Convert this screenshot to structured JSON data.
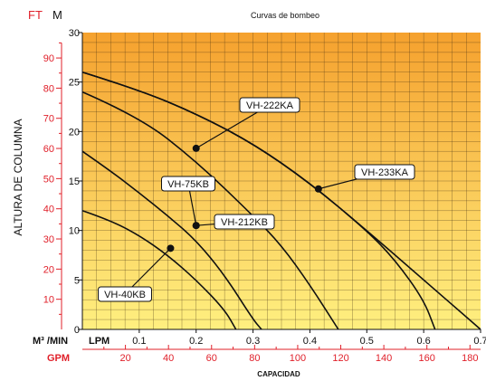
{
  "chart_data": {
    "type": "line",
    "title": "Curvas de bombeo",
    "units_left": {
      "ft": "FT",
      "m": "M"
    },
    "ylabel": "ALTURA DE COLUMNA",
    "xlabel": "CAPACIDAD",
    "x_unit_top": "M³ /MIN",
    "x_unit_lpm": "LPM",
    "x_unit_gpm": "GPM",
    "xlim": [
      0,
      0.7
    ],
    "ylim": [
      0,
      30
    ],
    "m_ticks": [
      0,
      5,
      10,
      15,
      20,
      25,
      30
    ],
    "m_tick_labels": [
      "0",
      "5",
      "10",
      "15",
      "20",
      "25",
      "30"
    ],
    "ft_ticks": [
      10,
      20,
      30,
      40,
      50,
      60,
      70,
      80,
      90
    ],
    "ft_tick_labels": [
      "10",
      "20",
      "30",
      "40",
      "50",
      "60",
      "70",
      "80",
      "90"
    ],
    "x_ticks": [
      0.1,
      0.2,
      0.3,
      0.4,
      0.5,
      0.6,
      0.7
    ],
    "x_tick_labels": [
      "0.1",
      "0.2",
      "0.3",
      "0.4",
      "0.5",
      "0.6",
      "0.7"
    ],
    "gpm_ticks": [
      20,
      40,
      60,
      80,
      100,
      120,
      140,
      160,
      180
    ],
    "gpm_tick_labels": [
      "20",
      "40",
      "60",
      "80",
      "100",
      "120",
      "140",
      "160",
      "180"
    ],
    "grid": true,
    "colors": {
      "grad_top": "#f5a12e",
      "grad_bottom": "#fff080",
      "grid": "#3a2a10",
      "curve": "#111111",
      "secondary_axis": "#e0202a"
    },
    "series": [
      {
        "name": "VH-40KB",
        "x": [
          0,
          0.05,
          0.1,
          0.15,
          0.2,
          0.25,
          0.27
        ],
        "y": [
          12,
          11,
          9.5,
          7.5,
          5,
          2,
          0
        ]
      },
      {
        "name": "VH-75KB",
        "x": [
          0,
          0.05,
          0.1,
          0.15,
          0.2,
          0.25,
          0.3,
          0.315
        ],
        "y": [
          18,
          16,
          13.8,
          11.5,
          9,
          5.5,
          1,
          0
        ]
      },
      {
        "name": "VH-212KB",
        "x": [
          0,
          0.1,
          0.2,
          0.3,
          0.35,
          0.4,
          0.45
        ],
        "y": [
          24,
          21.5,
          17,
          11.5,
          8.5,
          4.5,
          0
        ]
      },
      {
        "name": "VH-222KA",
        "x": [
          0,
          0.1,
          0.2,
          0.3,
          0.4,
          0.5,
          0.55,
          0.6,
          0.62
        ],
        "y": [
          26,
          24.2,
          21.8,
          18.8,
          14.8,
          10,
          7,
          3,
          0
        ]
      },
      {
        "name": "VH-233KA",
        "x": [
          0,
          0.1,
          0.2,
          0.3,
          0.4,
          0.5,
          0.6,
          0.68,
          0.7
        ],
        "y": [
          26,
          24.2,
          21.8,
          18.8,
          14.8,
          10,
          5,
          1,
          0
        ]
      }
    ],
    "annotations": [
      {
        "label": "VH-222KA",
        "point": [
          0.2,
          18.3
        ]
      },
      {
        "label": "VH-233KA",
        "point": [
          0.415,
          14.2
        ]
      },
      {
        "label": "VH-75KB",
        "point": [
          0.2,
          10.5
        ]
      },
      {
        "label": "VH-212KB",
        "point": [
          0.2,
          10.5
        ]
      },
      {
        "label": "VH-40KB",
        "point": [
          0.155,
          8.2
        ]
      }
    ]
  }
}
